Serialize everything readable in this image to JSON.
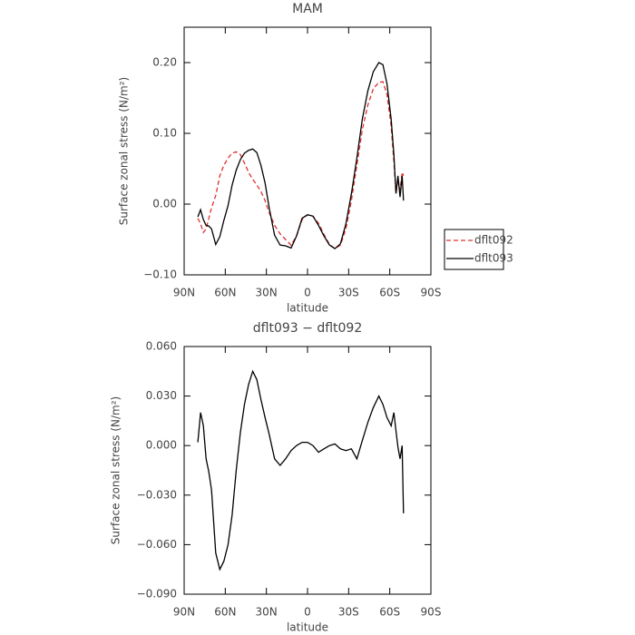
{
  "chart_data": [
    {
      "type": "line",
      "title": "MAM",
      "xlabel": "latitude",
      "ylabel": "Surface zonal stress (N/m²)",
      "x": [
        80,
        78,
        76,
        74,
        72,
        70,
        67,
        64,
        61,
        58,
        55,
        52,
        49,
        46,
        43,
        40,
        37,
        34,
        31,
        28,
        24,
        20,
        16,
        12,
        8,
        4,
        0,
        -4,
        -8,
        -12,
        -16,
        -20,
        -24,
        -28,
        -32,
        -36,
        -40,
        -44,
        -48,
        -52,
        -55,
        -58,
        -61,
        -63,
        -64.5,
        -66,
        -67.5,
        -69,
        -70
      ],
      "series": [
        {
          "name": "dflt092",
          "color": "#e03030",
          "dash": true,
          "values": [
            -0.02,
            -0.028,
            -0.04,
            -0.035,
            -0.02,
            -0.005,
            0.012,
            0.04,
            0.055,
            0.065,
            0.072,
            0.074,
            0.07,
            0.058,
            0.045,
            0.035,
            0.027,
            0.018,
            0.005,
            -0.012,
            -0.03,
            -0.042,
            -0.05,
            -0.058,
            -0.045,
            -0.022,
            -0.015,
            -0.017,
            -0.027,
            -0.043,
            -0.057,
            -0.063,
            -0.058,
            -0.035,
            0.005,
            0.055,
            0.105,
            0.14,
            0.163,
            0.172,
            0.173,
            0.155,
            0.11,
            0.06,
            0.015,
            0.035,
            0.02,
            0.045,
            0.04
          ]
        },
        {
          "name": "dflt093",
          "color": "#000000",
          "dash": false,
          "values": [
            -0.018,
            -0.008,
            -0.022,
            -0.03,
            -0.031,
            -0.035,
            -0.057,
            -0.046,
            -0.023,
            -0.002,
            0.027,
            0.048,
            0.063,
            0.072,
            0.076,
            0.078,
            0.073,
            0.055,
            0.03,
            -0.005,
            -0.044,
            -0.058,
            -0.059,
            -0.062,
            -0.045,
            -0.02,
            -0.015,
            -0.017,
            -0.03,
            -0.045,
            -0.058,
            -0.063,
            -0.056,
            -0.028,
            0.015,
            0.065,
            0.12,
            0.16,
            0.187,
            0.2,
            0.197,
            0.17,
            0.12,
            0.07,
            0.015,
            0.04,
            0.01,
            0.04,
            0.005
          ]
        }
      ],
      "xlim": [
        90,
        -90
      ],
      "xticks": [
        {
          "value": 90,
          "label": "90N"
        },
        {
          "value": 60,
          "label": "60N"
        },
        {
          "value": 30,
          "label": "30N"
        },
        0,
        {
          "value": -30,
          "label": "30S"
        },
        {
          "value": -60,
          "label": "60S"
        },
        {
          "value": -90,
          "label": "90S"
        }
      ],
      "ylim": [
        -0.1,
        0.25
      ],
      "yticks": [
        {
          "value": -0.1,
          "label": "−0.10"
        },
        {
          "value": 0,
          "label": "0.00"
        },
        {
          "value": 0.1,
          "label": "0.10"
        },
        {
          "value": 0.2,
          "label": "0.20"
        }
      ],
      "legend": "right"
    },
    {
      "type": "line",
      "title": "dflt093 − dflt092",
      "xlabel": "latitude",
      "ylabel": "Surface zonal stress (N/m²)",
      "x": [
        80,
        78,
        76,
        74,
        72,
        70,
        67,
        64,
        61,
        58,
        55,
        52,
        49,
        46,
        43,
        40,
        37,
        34,
        31,
        28,
        24,
        20,
        16,
        12,
        8,
        4,
        0,
        -4,
        -8,
        -12,
        -16,
        -20,
        -24,
        -28,
        -32,
        -36,
        -40,
        -44,
        -48,
        -52,
        -55,
        -58,
        -61,
        -63,
        -64.5,
        -66,
        -67.5,
        -69,
        -70
      ],
      "color": "#000000",
      "values": [
        0.002,
        0.02,
        0.012,
        -0.008,
        -0.016,
        -0.027,
        -0.065,
        -0.075,
        -0.07,
        -0.06,
        -0.042,
        -0.015,
        0.008,
        0.025,
        0.037,
        0.045,
        0.04,
        0.028,
        0.017,
        0.007,
        -0.008,
        -0.012,
        -0.008,
        -0.003,
        0,
        0.002,
        0.002,
        0,
        -0.004,
        -0.002,
        0,
        0.001,
        -0.002,
        -0.003,
        -0.002,
        -0.008,
        0.003,
        0.014,
        0.023,
        0.03,
        0.025,
        0.017,
        0.012,
        0.02,
        0.009,
        -0.001,
        -0.008,
        0,
        -0.041
      ],
      "xlim": [
        90,
        -90
      ],
      "xticks": [
        {
          "value": 90,
          "label": "90N"
        },
        {
          "value": 60,
          "label": "60N"
        },
        {
          "value": 30,
          "label": "30N"
        },
        0,
        {
          "value": -30,
          "label": "30S"
        },
        {
          "value": -60,
          "label": "60S"
        },
        {
          "value": -90,
          "label": "90S"
        }
      ],
      "ylim": [
        -0.09,
        0.06
      ],
      "yticks": [
        {
          "value": -0.09,
          "label": "−0.090"
        },
        {
          "value": -0.06,
          "label": "−0.060"
        },
        {
          "value": -0.03,
          "label": "−0.030"
        },
        {
          "value": 0,
          "label": "0.000"
        },
        {
          "value": 0.03,
          "label": "0.030"
        },
        {
          "value": 0.06,
          "label": "0.060"
        }
      ]
    }
  ]
}
